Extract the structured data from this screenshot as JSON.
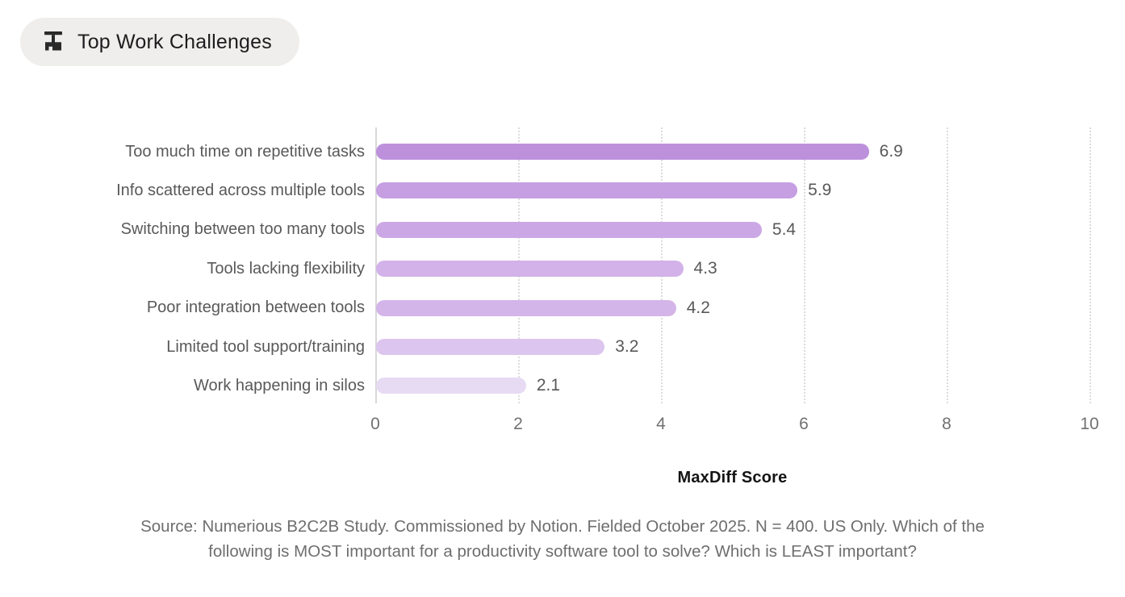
{
  "header": {
    "badge_label": "Top Work Challenges",
    "badge_icon": "broom-icon",
    "badge_bg": "#efeeec",
    "badge_text_color": "#1d1d1f"
  },
  "chart_data": {
    "type": "bar",
    "orientation": "horizontal",
    "title": "Top Work Challenges",
    "categories": [
      "Too much time on repetitive tasks",
      "Info scattered across multiple tools",
      "Switching between too many tools",
      "Tools lacking flexibility",
      "Poor integration between tools",
      "Limited tool support/training",
      "Work happening in silos"
    ],
    "values": [
      6.9,
      5.9,
      5.4,
      4.3,
      4.2,
      3.2,
      2.1
    ],
    "value_labels": [
      "6.9",
      "5.9",
      "5.4",
      "4.3",
      "4.2",
      "3.2",
      "2.1"
    ],
    "bar_colors": [
      "#bd90dc",
      "#c59fe2",
      "#cba8e5",
      "#d2b2e8",
      "#d4b5e9",
      "#dcc5ee",
      "#e7daf3"
    ],
    "xlabel": "MaxDiff Score",
    "ylabel": "",
    "x_ticks": [
      0,
      2,
      4,
      6,
      8,
      10
    ],
    "xlim": [
      0,
      10
    ],
    "grid": "dotted-vertical",
    "legend": "none",
    "axis_color": "#d8d8d8",
    "gridline_color": "#dcdcdc",
    "label_color": "#595959",
    "tick_color": "#717171"
  },
  "footer": {
    "source_lines": [
      "Source: Numerious B2C2B Study. Commissioned by Notion. Fielded October 2025. N = 400. US Only. Which of the",
      "following is MOST important for a productivity software tool to solve? Which is LEAST important?"
    ]
  }
}
